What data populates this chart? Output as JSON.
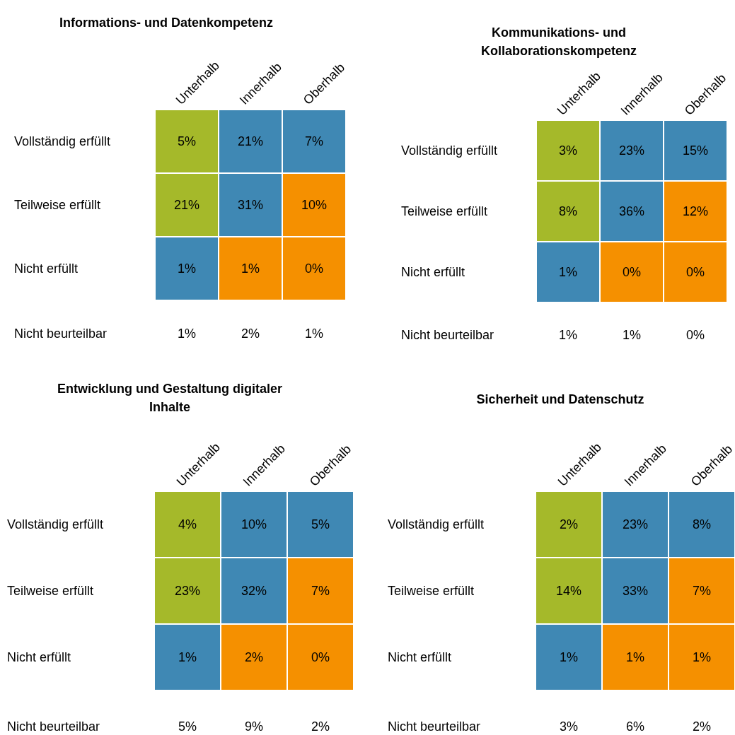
{
  "chart_data": [
    {
      "type": "heatmap",
      "title": "Informations- und Datenkompetenz",
      "categories": [
        "Unterhalb",
        "Innerhalb",
        "Oberhalb"
      ],
      "y_categories": [
        "Vollständig erfüllt",
        "Teilweise erfüllt",
        "Nicht erfüllt",
        "Nicht beurteilbar"
      ],
      "cells": [
        [
          5,
          21,
          7
        ],
        [
          21,
          31,
          10
        ],
        [
          1,
          1,
          0
        ],
        [
          1,
          2,
          1
        ]
      ],
      "cell_labels": [
        [
          "5%",
          "21%",
          "7%"
        ],
        [
          "21%",
          "31%",
          "10%"
        ],
        [
          "1%",
          "1%",
          "0%"
        ],
        [
          "1%",
          "2%",
          "1%"
        ]
      ],
      "colors": [
        [
          "#a5b92a",
          "#3f88b4",
          "#3f88b4"
        ],
        [
          "#a5b92a",
          "#3f88b4",
          "#f59000"
        ],
        [
          "#3f88b4",
          "#f59000",
          "#f59000"
        ],
        [
          null,
          null,
          null
        ]
      ]
    },
    {
      "type": "heatmap",
      "title": "Kommunikations- und Kollaborationskompetenz",
      "categories": [
        "Unterhalb",
        "Innerhalb",
        "Oberhalb"
      ],
      "y_categories": [
        "Vollständig erfüllt",
        "Teilweise erfüllt",
        "Nicht erfüllt",
        "Nicht beurteilbar"
      ],
      "cells": [
        [
          3,
          23,
          15
        ],
        [
          8,
          36,
          12
        ],
        [
          1,
          0,
          0
        ],
        [
          1,
          1,
          0
        ]
      ],
      "cell_labels": [
        [
          "3%",
          "23%",
          "15%"
        ],
        [
          "8%",
          "36%",
          "12%"
        ],
        [
          "1%",
          "0%",
          "0%"
        ],
        [
          "1%",
          "1%",
          "0%"
        ]
      ],
      "colors": [
        [
          "#a5b92a",
          "#3f88b4",
          "#3f88b4"
        ],
        [
          "#a5b92a",
          "#3f88b4",
          "#f59000"
        ],
        [
          "#3f88b4",
          "#f59000",
          "#f59000"
        ],
        [
          null,
          null,
          null
        ]
      ]
    },
    {
      "type": "heatmap",
      "title": "Entwicklung und Gestaltung digitaler Inhalte",
      "categories": [
        "Unterhalb",
        "Innerhalb",
        "Oberhalb"
      ],
      "y_categories": [
        "Vollständig erfüllt",
        "Teilweise erfüllt",
        "Nicht erfüllt",
        "Nicht beurteilbar"
      ],
      "cells": [
        [
          4,
          10,
          5
        ],
        [
          23,
          32,
          7
        ],
        [
          1,
          2,
          0
        ],
        [
          5,
          9,
          2
        ]
      ],
      "cell_labels": [
        [
          "4%",
          "10%",
          "5%"
        ],
        [
          "23%",
          "32%",
          "7%"
        ],
        [
          "1%",
          "2%",
          "0%"
        ],
        [
          "5%",
          "9%",
          "2%"
        ]
      ],
      "colors": [
        [
          "#a5b92a",
          "#3f88b4",
          "#3f88b4"
        ],
        [
          "#a5b92a",
          "#3f88b4",
          "#f59000"
        ],
        [
          "#3f88b4",
          "#f59000",
          "#f59000"
        ],
        [
          null,
          null,
          null
        ]
      ]
    },
    {
      "type": "heatmap",
      "title": "Sicherheit und Datenschutz",
      "categories": [
        "Unterhalb",
        "Innerhalb",
        "Oberhalb"
      ],
      "y_categories": [
        "Vollständig erfüllt",
        "Teilweise erfüllt",
        "Nicht erfüllt",
        "Nicht beurteilbar"
      ],
      "cells": [
        [
          2,
          23,
          8
        ],
        [
          14,
          33,
          7
        ],
        [
          1,
          1,
          1
        ],
        [
          3,
          6,
          2
        ]
      ],
      "cell_labels": [
        [
          "2%",
          "23%",
          "8%"
        ],
        [
          "14%",
          "33%",
          "7%"
        ],
        [
          "1%",
          "1%",
          "1%"
        ],
        [
          "3%",
          "6%",
          "2%"
        ]
      ],
      "colors": [
        [
          "#a5b92a",
          "#3f88b4",
          "#3f88b4"
        ],
        [
          "#a5b92a",
          "#3f88b4",
          "#f59000"
        ],
        [
          "#3f88b4",
          "#f59000",
          "#f59000"
        ],
        [
          null,
          null,
          null
        ]
      ]
    }
  ]
}
